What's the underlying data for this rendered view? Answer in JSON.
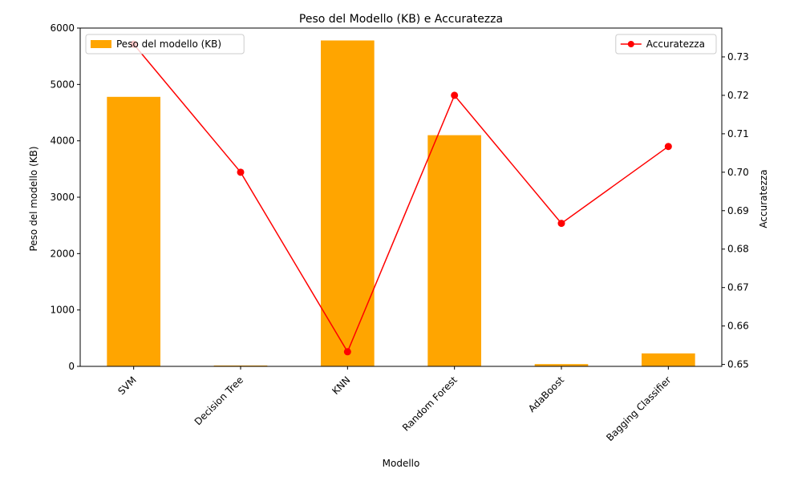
{
  "chart_data": {
    "type": "bar+line",
    "title": "Peso del Modello (KB) e Accuratezza",
    "xlabel": "Modello",
    "categories": [
      "SVM",
      "Decision Tree",
      "KNN",
      "Random Forest",
      "AdaBoost",
      "Bagging Classifier"
    ],
    "left_axis": {
      "label": "Peso del modello (KB)",
      "ylim": [
        0,
        6000
      ],
      "ticks": [
        "0",
        "1000",
        "2000",
        "3000",
        "4000",
        "5000",
        "6000"
      ]
    },
    "right_axis": {
      "label": "Accuratezza",
      "ylim": [
        0.6495,
        0.7375
      ],
      "ticks": [
        "0.65",
        "0.66",
        "0.67",
        "0.68",
        "0.69",
        "0.70",
        "0.71",
        "0.72",
        "0.73"
      ]
    },
    "series": [
      {
        "name": "Peso del modello (KB)",
        "kind": "bar",
        "axis": "left",
        "color": "#FFA500",
        "values": [
          4780,
          15,
          5780,
          4100,
          40,
          230
        ]
      },
      {
        "name": "Accuratezza",
        "kind": "line",
        "axis": "right",
        "color": "#FF0000",
        "marker": "circle",
        "values": [
          0.7333,
          0.7,
          0.6533,
          0.72,
          0.6867,
          0.7067
        ]
      }
    ],
    "legend": [
      {
        "label": "Peso del modello (KB)",
        "placement": "top-left"
      },
      {
        "label": "Accuratezza",
        "placement": "top-right"
      }
    ],
    "grid": false
  }
}
